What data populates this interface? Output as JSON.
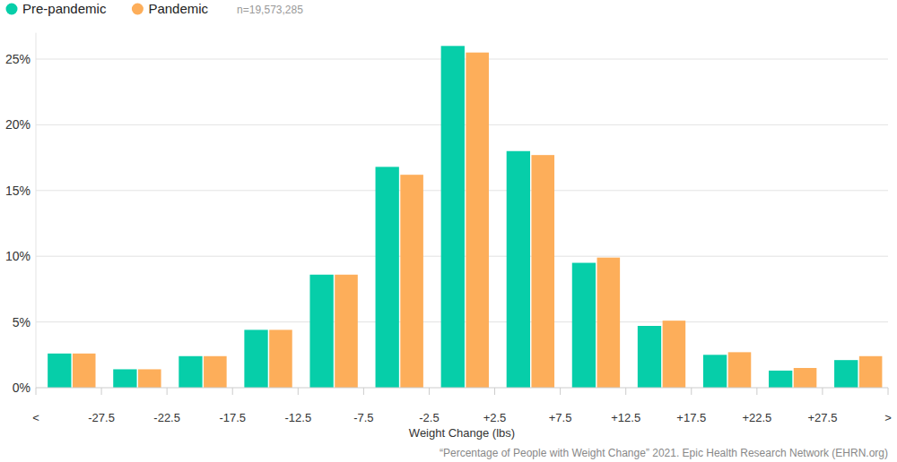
{
  "chart_data": {
    "type": "histogram",
    "x_label": "Weight Change (lbs)",
    "annotations": [
      "n=19,573,285",
      "“Percentage of People with Weight Change” 2021. Epic Health Research Network (EHRN.org)"
    ],
    "bins": [
      -32.5,
      -27.5,
      -22.5,
      -17.5,
      -12.5,
      -7.5,
      -2.5,
      2.5,
      7.5,
      12.5,
      17.5,
      22.5,
      27.5,
      32.5
    ],
    "series": [
      {
        "name": "Pre-pandemic",
        "color": "#06cea9",
        "values": [
          2.6,
          1.4,
          2.4,
          4.4,
          8.6,
          16.8,
          26.0,
          18.0,
          9.5,
          4.7,
          2.5,
          1.3,
          2.1
        ]
      },
      {
        "name": "Pandemic",
        "color": "#fdae5a",
        "values": [
          2.6,
          1.4,
          2.4,
          4.4,
          8.6,
          16.2,
          25.5,
          17.7,
          9.9,
          5.1,
          2.7,
          1.5,
          2.4
        ]
      }
    ],
    "xlim": [
      -32.5,
      32.5
    ],
    "xticks": [
      {
        "value": -32.5,
        "label": "<"
      },
      -27.5,
      -22.5,
      -17.5,
      -12.5,
      -7.5,
      -2.5,
      {
        "value": 2.5,
        "label": "+2.5"
      },
      {
        "value": 7.5,
        "label": "+7.5"
      },
      {
        "value": 12.5,
        "label": "+12.5"
      },
      {
        "value": 17.5,
        "label": "+17.5"
      },
      {
        "value": 22.5,
        "label": "+22.5"
      },
      {
        "value": 27.5,
        "label": "+27.5"
      },
      {
        "value": 32.5,
        "label": ">"
      }
    ],
    "ylim": [
      0,
      27
    ],
    "yticks": [
      {
        "value": 0,
        "label": "0%"
      },
      {
        "value": 5,
        "label": "5%"
      },
      {
        "value": 10,
        "label": "10%"
      },
      {
        "value": 15,
        "label": "15%"
      },
      {
        "value": 20,
        "label": "20%"
      },
      {
        "value": 25,
        "label": "25%"
      }
    ],
    "grid": true,
    "legend": "top-left"
  }
}
